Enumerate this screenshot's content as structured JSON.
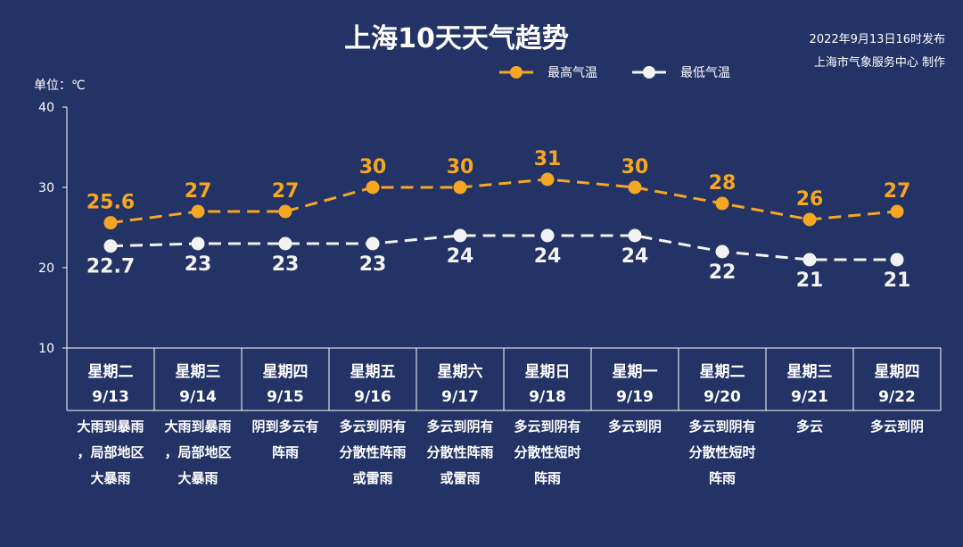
{
  "title": "上海10天天气趋势",
  "issue": {
    "line1": "2022年9月13日16时发布",
    "line2": "上海市气象服务中心 制作"
  },
  "unit_label": "单位：℃",
  "colors": {
    "background": "#233366",
    "high": "#f5a623",
    "low": "#f2f2f2"
  },
  "chart_data": {
    "type": "line",
    "title": "上海10天天气趋势",
    "ylabel": "单位：℃",
    "ylim": [
      10,
      40
    ],
    "yticks": [
      10,
      20,
      30,
      40
    ],
    "grid": false,
    "legend": "top-center",
    "categories": [
      "9/13",
      "9/14",
      "9/15",
      "9/16",
      "9/17",
      "9/18",
      "9/19",
      "9/20",
      "9/21",
      "9/22"
    ],
    "weekdays": [
      "星期二",
      "星期三",
      "星期四",
      "星期五",
      "星期六",
      "星期日",
      "星期一",
      "星期二",
      "星期三",
      "星期四"
    ],
    "conditions": [
      [
        "大雨到暴雨",
        "，局部地区",
        "大暴雨"
      ],
      [
        "大雨到暴雨",
        "，局部地区",
        "大暴雨"
      ],
      [
        "阴到多云有",
        "阵雨"
      ],
      [
        "多云到阴有",
        "分散性阵雨",
        "或雷雨"
      ],
      [
        "多云到阴有",
        "分散性阵雨",
        "或雷雨"
      ],
      [
        "多云到阴有",
        "分散性短时",
        "阵雨"
      ],
      [
        "多云到阴"
      ],
      [
        "多云到阴有",
        "分散性短时",
        "阵雨"
      ],
      [
        "多云"
      ],
      [
        "多云到阴"
      ]
    ],
    "series": [
      {
        "name": "最高气温",
        "color": "#f5a623",
        "values": [
          25.6,
          27,
          27,
          30,
          30,
          31,
          30,
          28,
          26,
          27
        ],
        "labels": [
          "25.6",
          "27",
          "27",
          "30",
          "30",
          "31",
          "30",
          "28",
          "26",
          "27"
        ]
      },
      {
        "name": "最低气温",
        "color": "#f2f2f2",
        "values": [
          22.7,
          23,
          23,
          23,
          24,
          24,
          24,
          22,
          21,
          21
        ],
        "labels": [
          "22.7",
          "23",
          "23",
          "23",
          "24",
          "24",
          "24",
          "22",
          "21",
          "21"
        ]
      }
    ]
  }
}
